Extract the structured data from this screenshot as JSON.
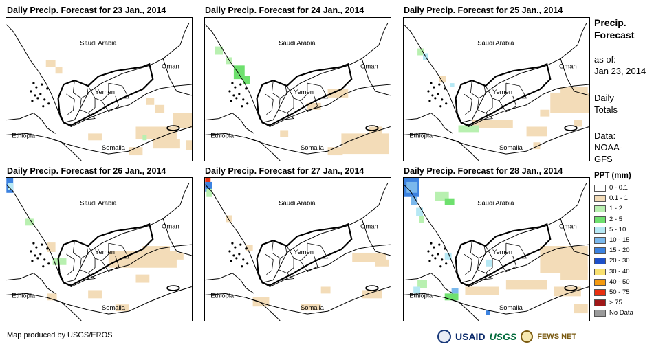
{
  "panels": [
    {
      "title": "Daily Precip. Forecast for 23 Jan., 2014"
    },
    {
      "title": "Daily Precip. Forecast for 24 Jan., 2014"
    },
    {
      "title": "Daily Precip. Forecast for 25 Jan., 2014"
    },
    {
      "title": "Daily Precip. Forecast for 26 Jan., 2014"
    },
    {
      "title": "Daily Precip. Forecast for 27 Jan., 2014"
    },
    {
      "title": "Daily Precip. Forecast for 28 Jan., 2014"
    }
  ],
  "map_labels": {
    "saudi": "Saudi Arabia",
    "oman": "Oman",
    "yemen": "Yemen",
    "ethiopia": "Ethiopia",
    "somalia": "Somalia"
  },
  "side": {
    "title1": "Precip.",
    "title2": "Forecast",
    "asof": "as of:",
    "date": "Jan 23, 2014",
    "daily1": "Daily",
    "daily2": "Totals",
    "data1": "Data:",
    "data2": "NOAA-",
    "data3": "GFS"
  },
  "legend": {
    "title": "PPT (mm)",
    "items": [
      {
        "label": "0 - 0.1",
        "color": "#ffffff"
      },
      {
        "label": "0.1 - 1",
        "color": "#f3dcb8"
      },
      {
        "label": "1 - 2",
        "color": "#b8f0b0"
      },
      {
        "label": "2 - 5",
        "color": "#6ee06e"
      },
      {
        "label": "5 - 10",
        "color": "#b6e8f4"
      },
      {
        "label": "10 - 15",
        "color": "#7ab8ec"
      },
      {
        "label": "15 - 20",
        "color": "#3c82e0"
      },
      {
        "label": "20 - 30",
        "color": "#1e50c8"
      },
      {
        "label": "30 - 40",
        "color": "#f8e070"
      },
      {
        "label": "40 - 50",
        "color": "#f49a10"
      },
      {
        "label": "50 - 75",
        "color": "#e83010"
      },
      {
        "label": "> 75",
        "color": "#a01818"
      },
      {
        "label": "No Data",
        "color": "#9a9a9a"
      }
    ]
  },
  "credit": "Map produced by USGS/EROS",
  "logos": {
    "usaid": "USAID",
    "usgs": "USGS",
    "fews": "FEWS NET"
  }
}
